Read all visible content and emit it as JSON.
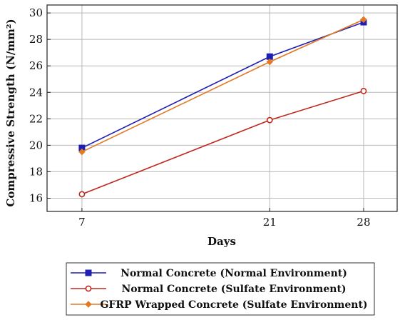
{
  "chart_data": {
    "type": "line",
    "x": [
      7,
      21,
      28
    ],
    "xlabel": "Days",
    "ylabel": "Compressive Strength (N/mm²)",
    "xlim": [
      4.4,
      30.5
    ],
    "ylim": [
      15.0,
      30.6
    ],
    "xticks": [
      7,
      21,
      28
    ],
    "yticks": [
      16,
      18,
      20,
      22,
      24,
      26,
      28,
      30
    ],
    "grid": true,
    "legend_position": "bottom",
    "series": [
      {
        "name": "Normal Concrete (Normal Environment)",
        "values": [
          19.8,
          26.7,
          29.3
        ],
        "color": "#1f1fb4",
        "marker": "square"
      },
      {
        "name": "Normal Concrete (Sulfate Environment)",
        "values": [
          16.3,
          21.9,
          24.1
        ],
        "color": "#c0281e",
        "marker": "circle"
      },
      {
        "name": "GFRP Wrapped Concrete (Sulfate Environment)",
        "values": [
          19.5,
          26.3,
          29.5
        ],
        "color": "#e07a26",
        "marker": "diamond"
      }
    ]
  }
}
